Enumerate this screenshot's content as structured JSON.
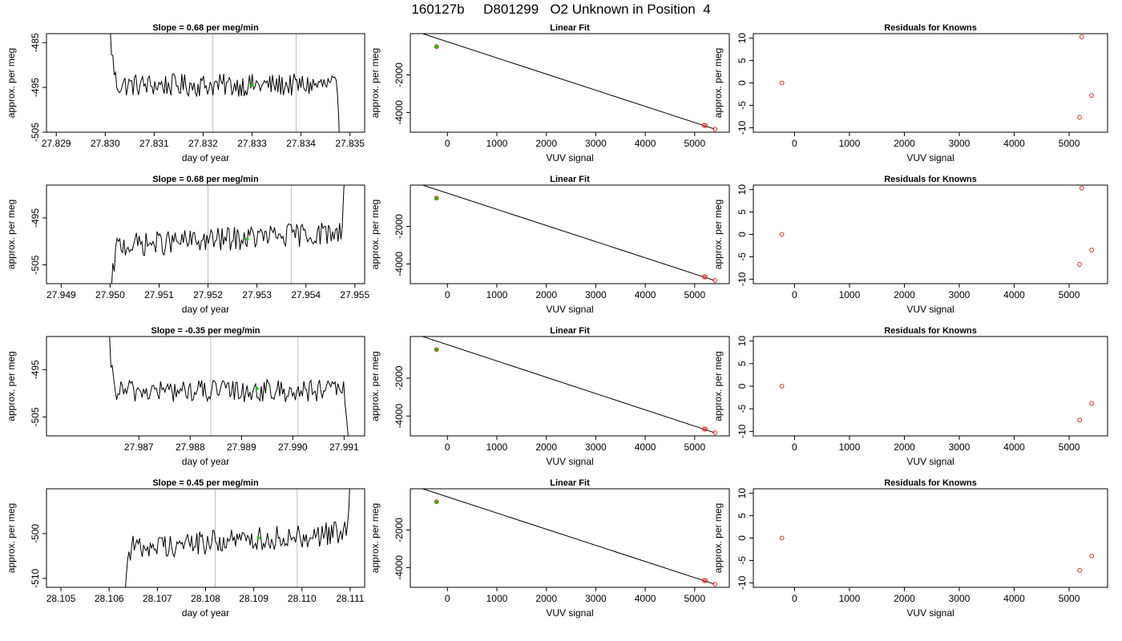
{
  "figure": {
    "title": "160127b     D801299   O2 Unknown in Position  4",
    "colors": {
      "trace": "#000000",
      "grid": "#bebebe",
      "mean": "#00cc00",
      "residual": "#e03030",
      "fit": "#000000"
    }
  },
  "chart_data": [
    {
      "type": "line",
      "panel": "trace",
      "row": 0,
      "title": "Slope =  0.68  per meg/min",
      "xlabel": "day of year",
      "ylabel": "approx. per meg",
      "xlim": [
        27.8288,
        27.8353
      ],
      "ylim": [
        -505,
        -483
      ],
      "xticks": [
        27.829,
        27.83,
        27.831,
        27.832,
        27.833,
        27.834,
        27.835
      ],
      "xtick_labels": [
        "27.829",
        "27.830",
        "27.831",
        "27.832",
        "27.833",
        "27.834",
        "27.835"
      ],
      "yticks": [
        -485,
        -495,
        -505
      ],
      "ytick_labels": [
        "-485",
        "-495",
        "-505"
      ],
      "vlines": [
        27.8322,
        27.8339
      ],
      "trace_start": 27.8301,
      "trace_end": 27.8348,
      "trace_mean": -494.5,
      "trace_noise": 1.6,
      "trace_drift": 0,
      "trace_head": 12,
      "trace_tail": 18,
      "mean_point": {
        "x": 27.833,
        "y": -494.5
      }
    },
    {
      "type": "scatter",
      "panel": "fit",
      "row": 0,
      "title": "Linear Fit",
      "xlabel": "VUV signal",
      "ylabel": "approx. per meg",
      "xlim": [
        -750,
        5700
      ],
      "ylim": [
        -5050,
        200
      ],
      "xticks": [
        0,
        1000,
        2000,
        3000,
        4000,
        5000
      ],
      "xtick_labels": [
        "0",
        "1000",
        "2000",
        "3000",
        "4000",
        "5000"
      ],
      "yticks": [
        -2000,
        -4000
      ],
      "ytick_labels": [
        "-2000",
        "-4000"
      ],
      "line": {
        "x": [
          -500,
          5400
        ],
        "y": [
          200,
          -4880
        ]
      },
      "knowns": {
        "x": [
          -220,
          5190,
          5220,
          5410
        ],
        "y": [
          -490,
          -4680,
          -4700,
          -4880
        ]
      },
      "unknown": {
        "x": [
          -220
        ],
        "y": [
          -495
        ]
      }
    },
    {
      "type": "scatter",
      "panel": "residuals",
      "row": 0,
      "title": "Residuals for Knowns",
      "xlabel": "VUV signal",
      "ylabel": "approx. per meg",
      "xlim": [
        -750,
        5700
      ],
      "ylim": [
        -11,
        11
      ],
      "xticks": [
        0,
        1000,
        2000,
        3000,
        4000,
        5000
      ],
      "xtick_labels": [
        "0",
        "1000",
        "2000",
        "3000",
        "4000",
        "5000"
      ],
      "yticks": [
        10,
        5,
        0,
        -5,
        -10
      ],
      "ytick_labels": [
        "10",
        "5",
        "0",
        "-5",
        "-10"
      ],
      "points": {
        "x": [
          -230,
          5190,
          5230,
          5410
        ],
        "y": [
          0,
          -7.7,
          10.3,
          -2.8
        ]
      }
    },
    {
      "type": "line",
      "panel": "trace",
      "row": 1,
      "title": "Slope =  0.68  per meg/min",
      "xlabel": "day of year",
      "ylabel": "approx. per meg",
      "xlim": [
        27.9487,
        27.9552
      ],
      "ylim": [
        -509,
        -488
      ],
      "xticks": [
        27.949,
        27.95,
        27.951,
        27.952,
        27.953,
        27.954,
        27.955
      ],
      "xtick_labels": [
        "27.949",
        "27.950",
        "27.951",
        "27.952",
        "27.953",
        "27.954",
        "27.955"
      ],
      "yticks": [
        -495,
        -505
      ],
      "ytick_labels": [
        "-495",
        "-505"
      ],
      "vlines": [
        27.952,
        27.9537
      ],
      "trace_start": 27.95,
      "trace_end": 27.9548,
      "trace_mean": -499.5,
      "trace_noise": 1.6,
      "trace_drift": 3,
      "trace_head": 14,
      "trace_tail": 14,
      "mean_point": {
        "x": 27.9528,
        "y": -499.5
      }
    },
    {
      "type": "scatter",
      "panel": "fit",
      "row": 1,
      "title": "Linear Fit",
      "xlabel": "VUV signal",
      "ylabel": "approx. per meg",
      "xlim": [
        -750,
        5700
      ],
      "ylim": [
        -5050,
        200
      ],
      "xticks": [
        0,
        1000,
        2000,
        3000,
        4000,
        5000
      ],
      "xtick_labels": [
        "0",
        "1000",
        "2000",
        "3000",
        "4000",
        "5000"
      ],
      "yticks": [
        -2000,
        -4000
      ],
      "ytick_labels": [
        "-2000",
        "-4000"
      ],
      "line": {
        "x": [
          -500,
          5400
        ],
        "y": [
          200,
          -4880
        ]
      },
      "knowns": {
        "x": [
          -220,
          5190,
          5220,
          5410
        ],
        "y": [
          -490,
          -4680,
          -4700,
          -4880
        ]
      },
      "unknown": {
        "x": [
          -220
        ],
        "y": [
          -500
        ]
      }
    },
    {
      "type": "scatter",
      "panel": "residuals",
      "row": 1,
      "title": "Residuals for Knowns",
      "xlabel": "VUV signal",
      "ylabel": "approx. per meg",
      "xlim": [
        -750,
        5700
      ],
      "ylim": [
        -11,
        11
      ],
      "xticks": [
        0,
        1000,
        2000,
        3000,
        4000,
        5000
      ],
      "xtick_labels": [
        "0",
        "1000",
        "2000",
        "3000",
        "4000",
        "5000"
      ],
      "yticks": [
        10,
        5,
        0,
        -5,
        -10
      ],
      "ytick_labels": [
        "10",
        "5",
        "0",
        "-5",
        "-10"
      ],
      "points": {
        "x": [
          -230,
          5190,
          5230,
          5410
        ],
        "y": [
          0,
          -6.7,
          10.3,
          -3.5
        ]
      }
    },
    {
      "type": "line",
      "panel": "trace",
      "row": 2,
      "title": "Slope =  -0.35  per meg/min",
      "xlabel": "day of year",
      "ylabel": "approx. per meg",
      "xlim": [
        27.9852,
        27.9914
      ],
      "ylim": [
        -509,
        -488
      ],
      "xticks": [
        27.987,
        27.988,
        27.989,
        27.99,
        27.991
      ],
      "xtick_labels": [
        "27.987",
        "27.988",
        "27.989",
        "27.990",
        "27.991"
      ],
      "yticks": [
        -495,
        -505
      ],
      "ytick_labels": [
        "-495",
        "-505"
      ],
      "vlines": [
        27.9884,
        27.9901
      ],
      "trace_start": 27.9864,
      "trace_end": 27.9911,
      "trace_mean": -499.5,
      "trace_noise": 1.5,
      "trace_drift": 0,
      "trace_head": 14,
      "trace_tail": 14,
      "mean_point": {
        "x": 27.9893,
        "y": -499
      }
    },
    {
      "type": "scatter",
      "panel": "fit",
      "row": 2,
      "title": "Linear Fit",
      "xlabel": "VUV signal",
      "ylabel": "approx. per meg",
      "xlim": [
        -750,
        5700
      ],
      "ylim": [
        -5050,
        200
      ],
      "xticks": [
        0,
        1000,
        2000,
        3000,
        4000,
        5000
      ],
      "xtick_labels": [
        "0",
        "1000",
        "2000",
        "3000",
        "4000",
        "5000"
      ],
      "yticks": [
        -2000,
        -4000
      ],
      "ytick_labels": [
        "-2000",
        "-4000"
      ],
      "line": {
        "x": [
          -500,
          5400
        ],
        "y": [
          200,
          -4880
        ]
      },
      "knowns": {
        "x": [
          -220,
          5190,
          5220,
          5410
        ],
        "y": [
          -490,
          -4680,
          -4700,
          -4880
        ]
      },
      "unknown": {
        "x": [
          -220
        ],
        "y": [
          -500
        ]
      }
    },
    {
      "type": "scatter",
      "panel": "residuals",
      "row": 2,
      "title": "Residuals for Knowns",
      "xlabel": "VUV signal",
      "ylabel": "approx. per meg",
      "xlim": [
        -750,
        5700
      ],
      "ylim": [
        -11,
        11
      ],
      "xticks": [
        0,
        1000,
        2000,
        3000,
        4000,
        5000
      ],
      "xtick_labels": [
        "0",
        "1000",
        "2000",
        "3000",
        "4000",
        "5000"
      ],
      "yticks": [
        10,
        5,
        0,
        -5,
        -10
      ],
      "ytick_labels": [
        "10",
        "5",
        "0",
        "-5",
        "-10"
      ],
      "points": {
        "x": [
          -230,
          5190,
          5410
        ],
        "y": [
          0,
          -7.5,
          -3.8
        ]
      }
    },
    {
      "type": "line",
      "panel": "trace",
      "row": 3,
      "title": "Slope =  0.45  per meg/min",
      "xlabel": "day of year",
      "ylabel": "approx. per meg",
      "xlim": [
        28.1047,
        28.1113
      ],
      "ylim": [
        -512,
        -490
      ],
      "xticks": [
        28.105,
        28.106,
        28.107,
        28.108,
        28.109,
        28.11,
        28.111
      ],
      "xtick_labels": [
        "28.105",
        "28.106",
        "28.107",
        "28.108",
        "28.109",
        "28.110",
        "28.111"
      ],
      "yticks": [
        -500,
        -510
      ],
      "ytick_labels": [
        "-500",
        "-510"
      ],
      "vlines": [
        28.1082,
        28.1099
      ],
      "trace_start": 28.1063,
      "trace_end": 28.111,
      "trace_mean": -501.5,
      "trace_noise": 1.7,
      "trace_drift": 3.5,
      "trace_head": 14,
      "trace_tail": 14,
      "mean_point": {
        "x": 28.1091,
        "y": -501
      }
    },
    {
      "type": "scatter",
      "panel": "fit",
      "row": 3,
      "title": "Linear Fit",
      "xlabel": "VUV signal",
      "ylabel": "approx. per meg",
      "xlim": [
        -750,
        5700
      ],
      "ylim": [
        -5050,
        200
      ],
      "xticks": [
        0,
        1000,
        2000,
        3000,
        4000,
        5000
      ],
      "xtick_labels": [
        "0",
        "1000",
        "2000",
        "3000",
        "4000",
        "5000"
      ],
      "yticks": [
        -2000,
        -4000
      ],
      "ytick_labels": [
        "-2000",
        "-4000"
      ],
      "line": {
        "x": [
          -500,
          5400
        ],
        "y": [
          200,
          -4880
        ]
      },
      "knowns": {
        "x": [
          -220,
          5190,
          5220,
          5410
        ],
        "y": [
          -490,
          -4680,
          -4700,
          -4880
        ]
      },
      "unknown": {
        "x": [
          -220
        ],
        "y": [
          -502
        ]
      }
    },
    {
      "type": "scatter",
      "panel": "residuals",
      "row": 3,
      "title": "Residuals for Knowns",
      "xlabel": "VUV signal",
      "ylabel": "approx. per meg",
      "xlim": [
        -750,
        5700
      ],
      "ylim": [
        -11,
        11
      ],
      "xticks": [
        0,
        1000,
        2000,
        3000,
        4000,
        5000
      ],
      "xtick_labels": [
        "0",
        "1000",
        "2000",
        "3000",
        "4000",
        "5000"
      ],
      "yticks": [
        10,
        5,
        0,
        -5,
        -10
      ],
      "ytick_labels": [
        "10",
        "5",
        "0",
        "-5",
        "-10"
      ],
      "points": {
        "x": [
          -230,
          5190,
          5410
        ],
        "y": [
          0,
          -7.2,
          -4.0
        ]
      }
    }
  ]
}
